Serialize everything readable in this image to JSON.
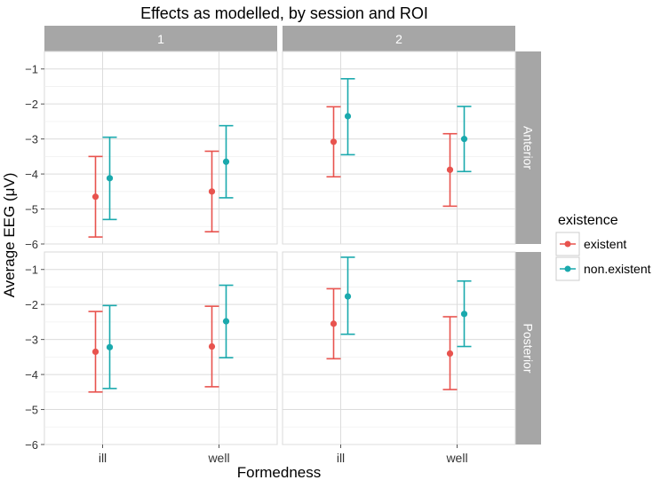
{
  "chart_data": {
    "type": "errorbar",
    "title": "Effects as modelled, by session and ROI",
    "xlabel": "Formedness",
    "ylabel": "Average EEG (μV)",
    "categories": [
      "ill",
      "well"
    ],
    "ylim": [
      -6,
      -0.5
    ],
    "yticks": [
      -1,
      -2,
      -3,
      -4,
      -5,
      -6
    ],
    "ytick_labels": [
      "−1",
      "−2",
      "−3",
      "−4",
      "−5",
      "−6"
    ],
    "facet_cols": [
      "1",
      "2"
    ],
    "facet_rows": [
      "Anterior",
      "Posterior"
    ],
    "legend": {
      "title": "existence",
      "entries": [
        "existent",
        "non.existent"
      ],
      "position": "right"
    },
    "colors": {
      "existent": "#e8534e",
      "non.existent": "#1aa9ad"
    },
    "panels": [
      {
        "col": "1",
        "row": "Anterior",
        "series": [
          {
            "name": "existent",
            "mean": [
              -4.65,
              -4.5
            ],
            "lower": [
              -5.8,
              -5.65
            ],
            "upper": [
              -3.5,
              -3.35
            ]
          },
          {
            "name": "non.existent",
            "mean": [
              -4.12,
              -3.65
            ],
            "lower": [
              -5.3,
              -4.68
            ],
            "upper": [
              -2.95,
              -2.62
            ]
          }
        ]
      },
      {
        "col": "2",
        "row": "Anterior",
        "series": [
          {
            "name": "existent",
            "mean": [
              -3.08,
              -3.88
            ],
            "lower": [
              -4.08,
              -4.92
            ],
            "upper": [
              -2.08,
              -2.85
            ]
          },
          {
            "name": "non.existent",
            "mean": [
              -2.35,
              -3.0
            ],
            "lower": [
              -3.45,
              -3.93
            ],
            "upper": [
              -1.28,
              -2.07
            ]
          }
        ]
      },
      {
        "col": "1",
        "row": "Posterior",
        "series": [
          {
            "name": "existent",
            "mean": [
              -3.35,
              -3.2
            ],
            "lower": [
              -4.5,
              -4.35
            ],
            "upper": [
              -2.2,
              -2.05
            ]
          },
          {
            "name": "non.existent",
            "mean": [
              -3.22,
              -2.48
            ],
            "lower": [
              -4.4,
              -3.52
            ],
            "upper": [
              -2.03,
              -1.45
            ]
          }
        ]
      },
      {
        "col": "2",
        "row": "Posterior",
        "series": [
          {
            "name": "existent",
            "mean": [
              -2.55,
              -3.4
            ],
            "lower": [
              -3.55,
              -4.43
            ],
            "upper": [
              -1.55,
              -2.35
            ]
          },
          {
            "name": "non.existent",
            "mean": [
              -1.77,
              -2.27
            ],
            "lower": [
              -2.85,
              -3.2
            ],
            "upper": [
              -0.65,
              -1.33
            ]
          }
        ]
      }
    ]
  }
}
